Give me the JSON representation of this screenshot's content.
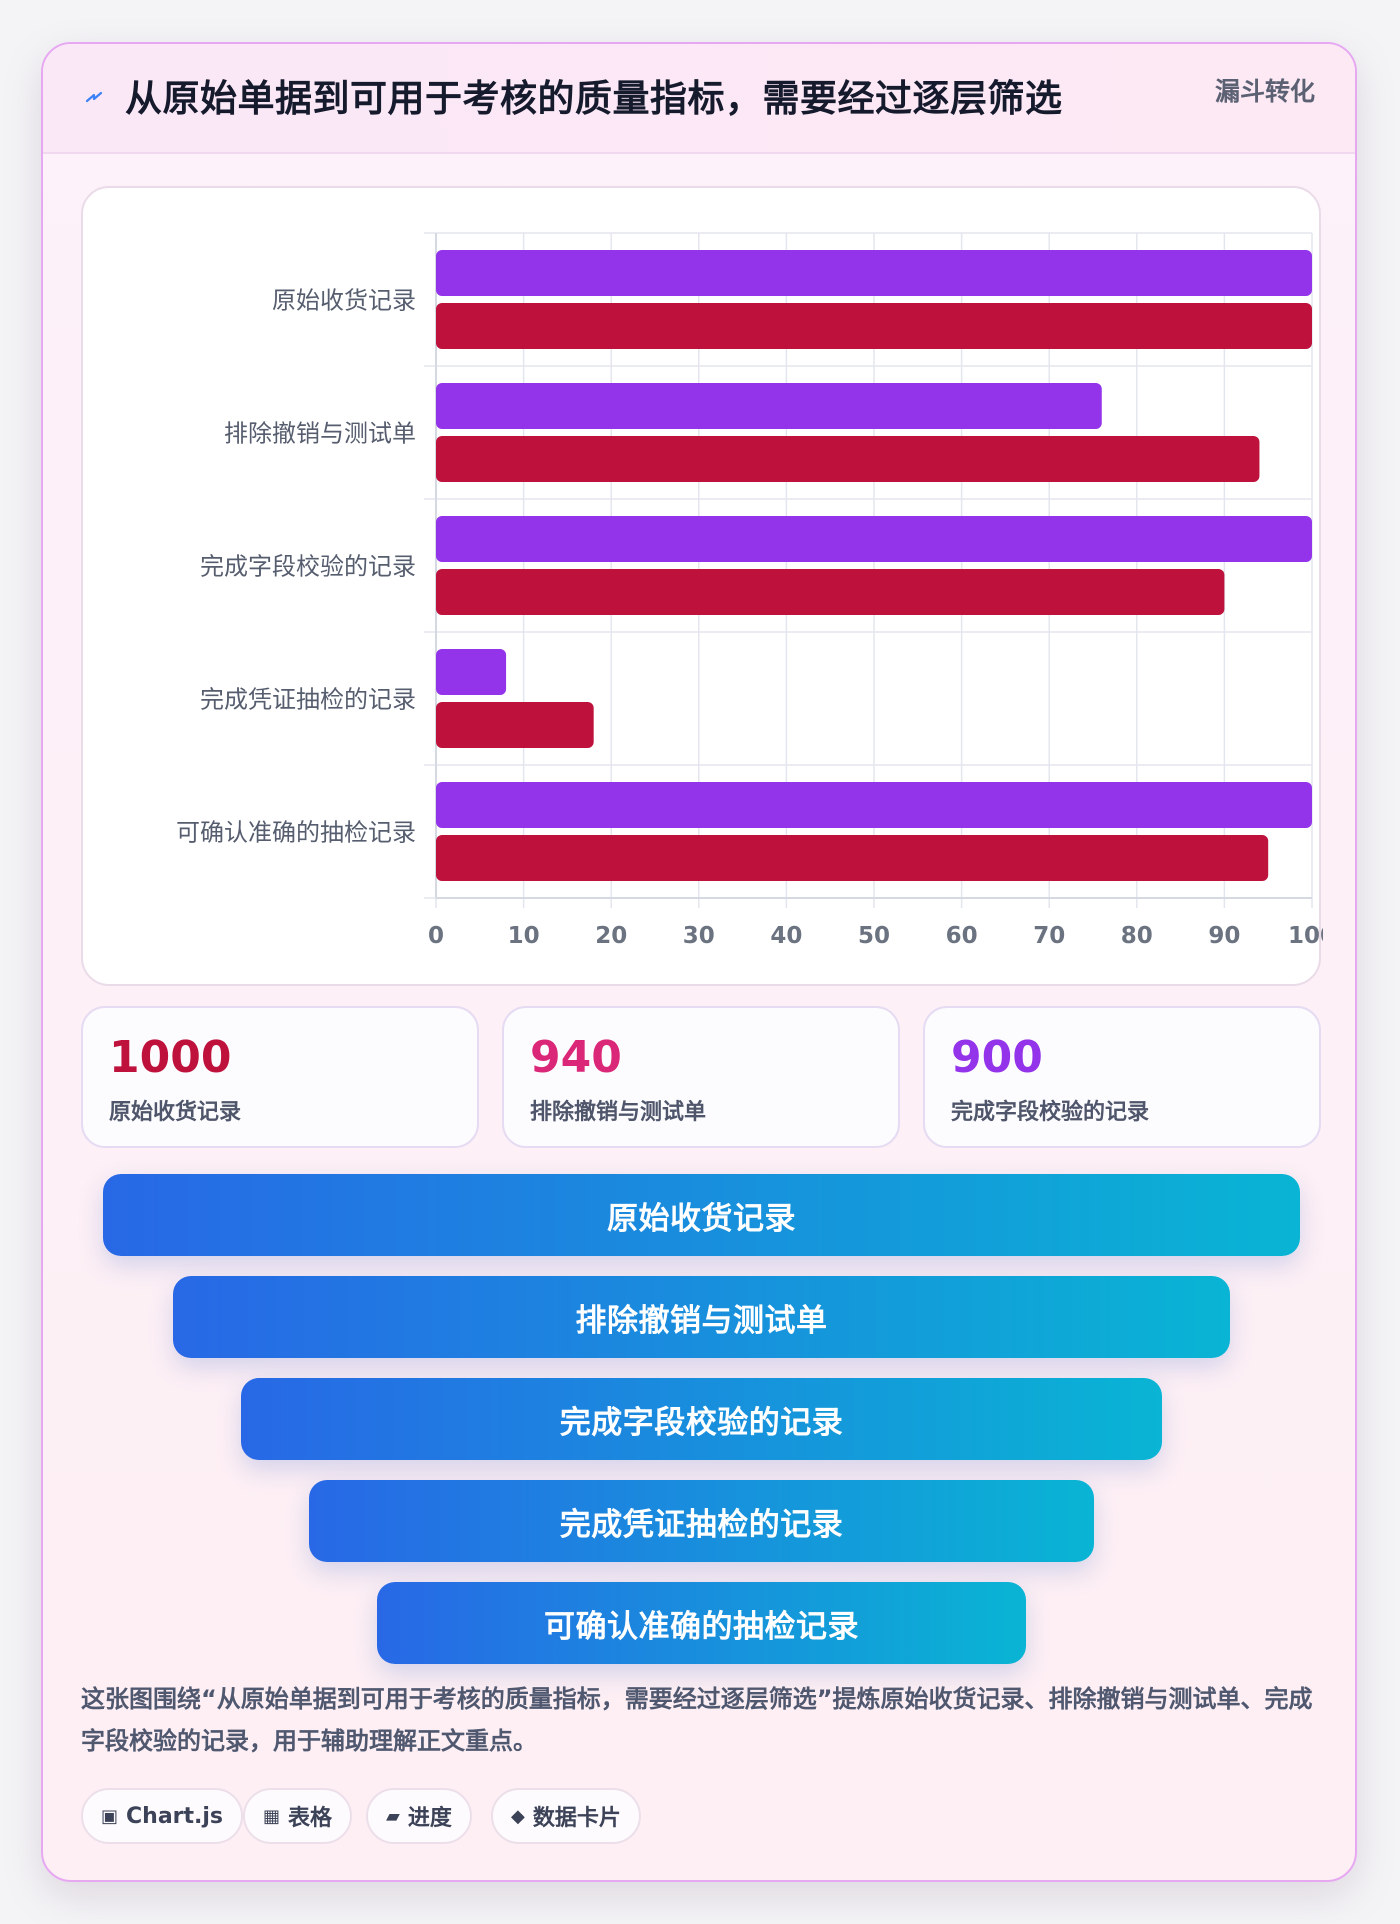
{
  "header": {
    "icon": "lightning-icon",
    "title": "从原始单据到可用于考核的质量指标，需要经过逐层筛选",
    "tag": "漏斗转化"
  },
  "chart_data": {
    "type": "bar",
    "orientation": "horizontal",
    "categories": [
      "原始收货记录",
      "排除撤销与测试单",
      "完成字段校验的记录",
      "完成凭证抽检的记录",
      "可确认准确的抽检记录"
    ],
    "series": [
      {
        "color": "#9333ea",
        "values": [
          100,
          76,
          100,
          8,
          100
        ]
      },
      {
        "color": "#be123c",
        "values": [
          100,
          94,
          90,
          18,
          95
        ]
      }
    ],
    "xlim": [
      0,
      100
    ],
    "xticks": [
      "0",
      "10",
      "20",
      "30",
      "40",
      "50",
      "60",
      "70",
      "80",
      "90",
      "100"
    ],
    "grid": true,
    "legend": "none"
  },
  "stats": [
    {
      "value": "1000",
      "label": "原始收货记录",
      "color": "#be123c"
    },
    {
      "value": "940",
      "label": "排除撤销与测试单",
      "color": "#db2777"
    },
    {
      "value": "900",
      "label": "完成字段校验的记录",
      "color": "#9333ea"
    }
  ],
  "funnel": [
    "原始收货记录",
    "排除撤销与测试单",
    "完成字段校验的记录",
    "完成凭证抽检的记录",
    "可确认准确的抽检记录"
  ],
  "description": "这张图围绕“从原始单据到可用于考核的质量指标，需要经过逐层筛选”提炼原始收货记录、排除撤销与测试单、完成字段校验的记录，用于辅助理解正文重点。",
  "tags": [
    {
      "icon": "▣",
      "label": "Chart.js"
    },
    {
      "icon": "▦",
      "label": "表格"
    },
    {
      "icon": "▰",
      "label": "进度"
    },
    {
      "icon": "◆",
      "label": "数据卡片"
    }
  ]
}
